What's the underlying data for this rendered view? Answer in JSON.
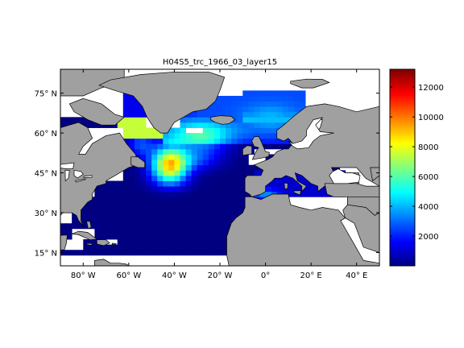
{
  "figure": {
    "title": "H04S5_trc_1966_03_layer15"
  },
  "map": {
    "projection": "equirectangular",
    "lon_range": [
      -90,
      50
    ],
    "lat_range": [
      10,
      84
    ],
    "lon_ticks": [
      {
        "value": -80,
        "label": "80° W"
      },
      {
        "value": -60,
        "label": "60° W"
      },
      {
        "value": -40,
        "label": "40° W"
      },
      {
        "value": -20,
        "label": "20° W"
      },
      {
        "value": 0,
        "label": "0°"
      },
      {
        "value": 20,
        "label": "20° E"
      },
      {
        "value": 40,
        "label": "40° E"
      }
    ],
    "lat_ticks": [
      {
        "value": 75,
        "label": "75° N"
      },
      {
        "value": 60,
        "label": "60° N"
      },
      {
        "value": 45,
        "label": "45° N"
      },
      {
        "value": 30,
        "label": "30° N"
      },
      {
        "value": 15,
        "label": "15° N"
      }
    ],
    "land_color": "#a0a0a0",
    "no_data_color": "#ffffff",
    "coastline_color": "#000000"
  },
  "colorbar": {
    "colormap": "jet",
    "range": [
      0,
      13200
    ],
    "ticks": [
      {
        "value": 2000,
        "label": "2000"
      },
      {
        "value": 4000,
        "label": "4000"
      },
      {
        "value": 6000,
        "label": "6000"
      },
      {
        "value": 8000,
        "label": "8000"
      },
      {
        "value": 10000,
        "label": "10000"
      },
      {
        "value": 12000,
        "label": "12000"
      }
    ]
  },
  "chart_data": {
    "type": "heatmap",
    "title": "H04S5_trc_1966_03_layer15",
    "xlabel": "",
    "ylabel": "",
    "xlim": [
      -90,
      50
    ],
    "ylim": [
      10,
      84
    ],
    "grid": false,
    "legend": "colorbar-right",
    "value_range": [
      0,
      13200
    ],
    "field_regions": [
      {
        "region": "Labrador Sea / south of Greenland",
        "approx_value": 8500
      },
      {
        "region": "Newfoundland Basin",
        "approx_value": 10500
      },
      {
        "region": "Irminger Sea",
        "approx_value": 7000
      },
      {
        "region": "Iceland Basin",
        "approx_value": 5500
      },
      {
        "region": "Norwegian Sea",
        "approx_value": 4000
      },
      {
        "region": "Greenland Sea / Arctic",
        "approx_value": 2500
      },
      {
        "region": "Baffin Bay",
        "approx_value": 1500
      },
      {
        "region": "Central North Atlantic 40-45N",
        "approx_value": 2000
      },
      {
        "region": "Mediterranean",
        "approx_value": 1200
      },
      {
        "region": "Subtropical North Atlantic",
        "approx_value": 100
      }
    ]
  }
}
